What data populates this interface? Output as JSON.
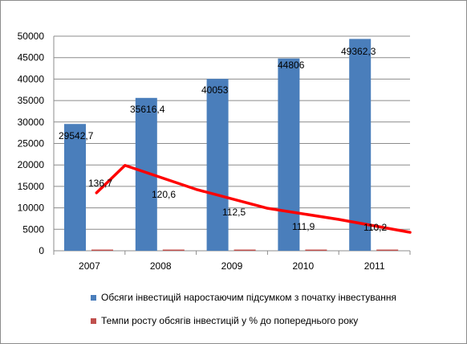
{
  "chart_data": {
    "type": "bar",
    "categories": [
      "2007",
      "2008",
      "2009",
      "2010",
      "2011"
    ],
    "ylim": [
      0,
      50000
    ],
    "yticks": [
      "0",
      "5000",
      "10000",
      "15000",
      "20000",
      "25000",
      "30000",
      "35000",
      "40000",
      "45000",
      "50000"
    ],
    "grid": true,
    "legend_position": "bottom",
    "series": [
      {
        "name": "Обсяги інвестицій наростаючим підсумком з початку інвестування",
        "type": "bar",
        "color": "#4a7ebb",
        "values": [
          29542.7,
          35616.4,
          40053,
          44806,
          49362.3
        ],
        "labels": [
          "29542,7",
          "35616,4",
          "40053",
          "44806",
          "49362,3"
        ]
      },
      {
        "name": "Темпи росту обсягів інвестицій у % до попереднього року",
        "type": "bar",
        "color": "#c0504d",
        "values": [
          136.7,
          120.6,
          112.5,
          111.9,
          110.2
        ],
        "labels": [
          "136,7",
          "120,6",
          "112,5",
          "111,9",
          "110,2"
        ]
      }
    ],
    "overlay_line": {
      "color": "#ff0000",
      "points": [
        [
          1.6,
          13500
        ],
        [
          2.0,
          19900
        ],
        [
          3.0,
          14300
        ],
        [
          4.0,
          9900
        ],
        [
          5.0,
          7300
        ],
        [
          6.0,
          4300
        ]
      ]
    }
  }
}
